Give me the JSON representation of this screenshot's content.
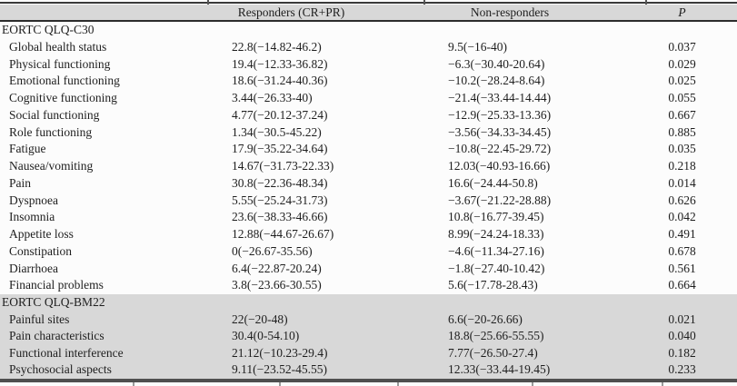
{
  "header": {
    "col_responders": "Responders (CR+PR)",
    "col_nonresponders": "Non-responders",
    "col_p": "P"
  },
  "sections": [
    {
      "title": "EORTC QLQ-C30",
      "shaded": false,
      "rows": [
        {
          "label": "Global health status",
          "responders": "22.8(−14.82-46.2)",
          "non_responders": "9.5(−16-40)",
          "p": "0.037"
        },
        {
          "label": "Physical functioning",
          "responders": "19.4(−12.33-36.82)",
          "non_responders": "−6.3(−30.40-20.64)",
          "p": "0.029"
        },
        {
          "label": "Emotional functioning",
          "responders": "18.6(−31.24-40.36)",
          "non_responders": "−10.2(−28.24-8.64)",
          "p": "0.025"
        },
        {
          "label": "Cognitive functioning",
          "responders": "3.44(−26.33-40)",
          "non_responders": "−21.4(−33.44-14.44)",
          "p": "0.055"
        },
        {
          "label": "Social functioning",
          "responders": "4.77(−20.12-37.24)",
          "non_responders": "−12.9(−25.33-13.36)",
          "p": "0.667"
        },
        {
          "label": "Role functioning",
          "responders": "1.34(−30.5-45.22)",
          "non_responders": "−3.56(−34.33-34.45)",
          "p": "0.885"
        },
        {
          "label": "Fatigue",
          "responders": "17.9(−35.22-34.64)",
          "non_responders": "−10.8(−22.45-29.72)",
          "p": "0.035"
        },
        {
          "label": "Nausea/vomiting",
          "responders": "14.67(−31.73-22.33)",
          "non_responders": "12.03(−40.93-16.66)",
          "p": "0.218"
        },
        {
          "label": "Pain",
          "responders": "30.8(−22.36-48.34)",
          "non_responders": "16.6(−24.44-50.8)",
          "p": "0.014"
        },
        {
          "label": "Dyspnoea",
          "responders": "5.55(−25.24-31.73)",
          "non_responders": "−3.67(−21.22-28.88)",
          "p": "0.626"
        },
        {
          "label": "Insomnia",
          "responders": "23.6(−38.33-46.66)",
          "non_responders": "10.8(−16.77-39.45)",
          "p": "0.042"
        },
        {
          "label": "Appetite loss",
          "responders": "12.88(−44.67-26.67)",
          "non_responders": "8.99(−24.24-18.33)",
          "p": "0.491"
        },
        {
          "label": "Constipation",
          "responders": "0(−26.67-35.56)",
          "non_responders": "−4.6(−11.34-27.16)",
          "p": "0.678"
        },
        {
          "label": "Diarrhoea",
          "responders": "6.4(−22.87-20.24)",
          "non_responders": "−1.8(−27.40-10.42)",
          "p": "0.561"
        },
        {
          "label": "Financial problems",
          "responders": "3.8(−23.66-30.55)",
          "non_responders": "5.6(−17.78-28.43)",
          "p": "0.664"
        }
      ]
    },
    {
      "title": "EORTC QLQ-BM22",
      "shaded": true,
      "rows": [
        {
          "label": "Painful sites",
          "responders": "22(−20-48)",
          "non_responders": "6.6(−20-26.66)",
          "p": "0.021"
        },
        {
          "label": "Pain characteristics",
          "responders": "30.4(0-54.10)",
          "non_responders": "18.8(−25.66-55.55)",
          "p": "0.040"
        },
        {
          "label": "Functional interference",
          "responders": "21.12(−10.23-29.4)",
          "non_responders": "7.77(−26.50-27.4)",
          "p": "0.182"
        },
        {
          "label": "Psychosocial aspects",
          "responders": "9.11(−23.52-45.55)",
          "non_responders": "12.33(−33.44-19.45)",
          "p": "0.233"
        }
      ]
    }
  ],
  "colors": {
    "band_gray": "#d8d8d8",
    "rule_dark": "#2c2c2c",
    "text": "#1e1e1e",
    "background": "#fcfcfc"
  },
  "layout_marks": {
    "top_tick_x": [
      228,
      466,
      710
    ],
    "bottom_tick_x": [
      146,
      307,
      437,
      585,
      728
    ]
  }
}
